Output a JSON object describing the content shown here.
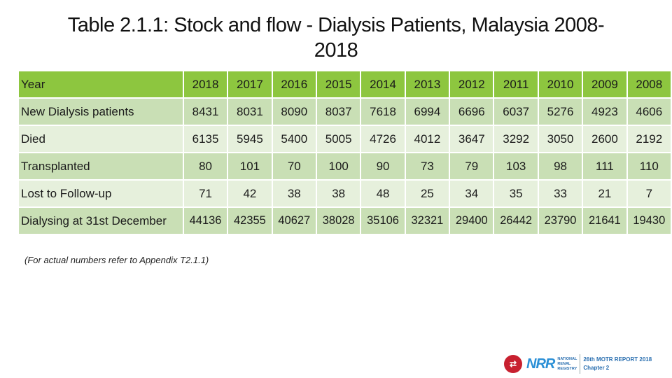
{
  "title_line1": "Table 2.1.1: Stock and flow - Dialysis Patients, Malaysia 2008-",
  "title_line2": "2018",
  "table": {
    "header_label": "Year",
    "years": [
      "2018",
      "2017",
      "2016",
      "2015",
      "2014",
      "2013",
      "2012",
      "2011",
      "2010",
      "2009",
      "2008"
    ],
    "rows": [
      {
        "label": "New Dialysis patients",
        "values": [
          "8431",
          "8031",
          "8090",
          "8037",
          "7618",
          "6994",
          "6696",
          "6037",
          "5276",
          "4923",
          "4606"
        ]
      },
      {
        "label": "Died",
        "values": [
          "6135",
          "5945",
          "5400",
          "5005",
          "4726",
          "4012",
          "3647",
          "3292",
          "3050",
          "2600",
          "2192"
        ]
      },
      {
        "label": "Transplanted",
        "values": [
          "80",
          "101",
          "70",
          "100",
          "90",
          "73",
          "79",
          "103",
          "98",
          "111",
          "110"
        ]
      },
      {
        "label": "Lost to Follow-up",
        "values": [
          "71",
          "42",
          "38",
          "38",
          "48",
          "25",
          "34",
          "35",
          "33",
          "21",
          "7"
        ]
      },
      {
        "label": "Dialysing at 31st December",
        "values": [
          "44136",
          "42355",
          "40627",
          "38028",
          "35106",
          "32321",
          "29400",
          "26442",
          "23790",
          "21641",
          "19430"
        ]
      }
    ]
  },
  "footnote": "(For actual numbers refer to Appendix T2.1.1)",
  "logo": {
    "mark": "⇄",
    "brand": "NRR",
    "sub_line1": "NATIONAL",
    "sub_line2": "RENAL",
    "sub_line3": "REGISTRY",
    "report_line1": "26th MOTR REPORT 2018",
    "report_line2": "Chapter 2"
  },
  "colors": {
    "header_green": "#8dc63f",
    "row_dark": "#c9dfb5",
    "row_light": "#e6f0dc"
  }
}
